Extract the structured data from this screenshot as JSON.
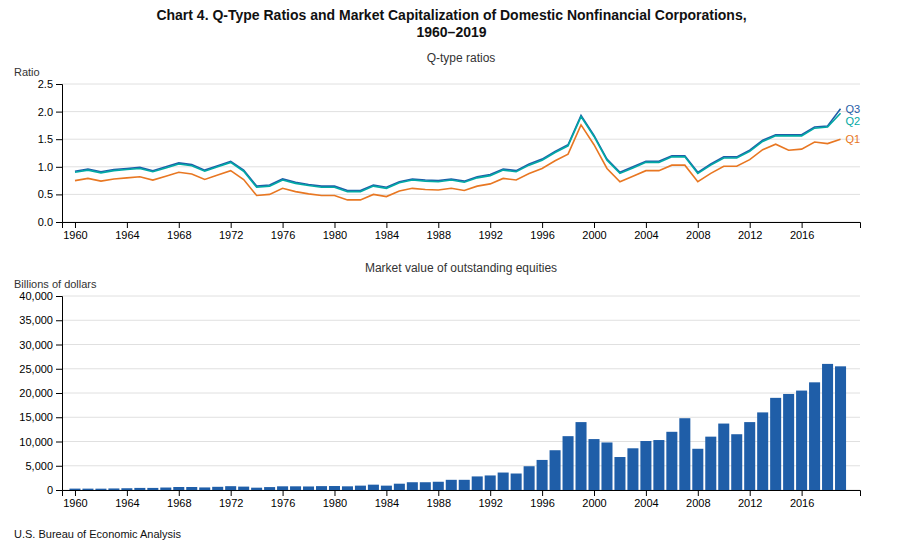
{
  "chart_data": [
    {
      "type": "line",
      "title": "Chart 4. Q-Type Ratios and Market Capitalization of Domestic Nonfinancial Corporations,\n1960–2019",
      "subtitle": "Q-type ratios",
      "y_label": "Ratio",
      "x": [
        1960,
        1961,
        1962,
        1963,
        1964,
        1965,
        1966,
        1967,
        1968,
        1969,
        1970,
        1971,
        1972,
        1973,
        1974,
        1975,
        1976,
        1977,
        1978,
        1979,
        1980,
        1981,
        1982,
        1983,
        1984,
        1985,
        1986,
        1987,
        1988,
        1989,
        1990,
        1991,
        1992,
        1993,
        1994,
        1995,
        1996,
        1997,
        1998,
        1999,
        2000,
        2001,
        2002,
        2003,
        2004,
        2005,
        2006,
        2007,
        2008,
        2009,
        2010,
        2011,
        2012,
        2013,
        2014,
        2015,
        2016,
        2017,
        2018,
        2019
      ],
      "series": [
        {
          "name": "Q3",
          "color": "#1F5EA8",
          "values": [
            0.92,
            0.96,
            0.91,
            0.95,
            0.97,
            0.99,
            0.93,
            1.0,
            1.07,
            1.04,
            0.94,
            1.02,
            1.1,
            0.94,
            0.65,
            0.67,
            0.78,
            0.72,
            0.68,
            0.65,
            0.65,
            0.57,
            0.57,
            0.67,
            0.63,
            0.73,
            0.78,
            0.76,
            0.75,
            0.78,
            0.74,
            0.82,
            0.86,
            0.96,
            0.93,
            1.05,
            1.14,
            1.28,
            1.4,
            1.93,
            1.57,
            1.14,
            0.9,
            1.0,
            1.1,
            1.1,
            1.2,
            1.2,
            0.9,
            1.05,
            1.18,
            1.18,
            1.3,
            1.48,
            1.58,
            1.58,
            1.58,
            1.72,
            1.74,
            2.05
          ]
        },
        {
          "name": "Q2",
          "color": "#00A9A5",
          "values": [
            0.9,
            0.94,
            0.89,
            0.93,
            0.95,
            0.97,
            0.91,
            0.98,
            1.05,
            1.02,
            0.92,
            1.0,
            1.08,
            0.92,
            0.63,
            0.65,
            0.76,
            0.7,
            0.66,
            0.63,
            0.63,
            0.55,
            0.55,
            0.65,
            0.61,
            0.71,
            0.76,
            0.74,
            0.73,
            0.76,
            0.72,
            0.8,
            0.84,
            0.94,
            0.91,
            1.03,
            1.12,
            1.26,
            1.38,
            1.91,
            1.55,
            1.12,
            0.88,
            0.98,
            1.08,
            1.08,
            1.18,
            1.18,
            0.88,
            1.03,
            1.16,
            1.16,
            1.28,
            1.46,
            1.56,
            1.56,
            1.56,
            1.7,
            1.72,
            1.97
          ]
        },
        {
          "name": "Q1",
          "color": "#E87722",
          "values": [
            0.75,
            0.79,
            0.74,
            0.78,
            0.8,
            0.82,
            0.76,
            0.83,
            0.9,
            0.87,
            0.77,
            0.85,
            0.93,
            0.77,
            0.48,
            0.5,
            0.61,
            0.55,
            0.51,
            0.48,
            0.48,
            0.4,
            0.4,
            0.5,
            0.46,
            0.56,
            0.61,
            0.59,
            0.58,
            0.61,
            0.57,
            0.65,
            0.69,
            0.79,
            0.76,
            0.88,
            0.97,
            1.11,
            1.23,
            1.76,
            1.4,
            0.97,
            0.73,
            0.83,
            0.93,
            0.93,
            1.03,
            1.03,
            0.73,
            0.88,
            1.01,
            1.01,
            1.13,
            1.31,
            1.41,
            1.3,
            1.32,
            1.45,
            1.42,
            1.5
          ]
        }
      ],
      "xlim": [
        1959,
        2020.5
      ],
      "xticks": [
        1960,
        1964,
        1968,
        1972,
        1976,
        1980,
        1984,
        1988,
        1992,
        1996,
        2000,
        2004,
        2008,
        2012,
        2016
      ],
      "ylim": [
        0.0,
        2.5
      ],
      "yticks": [
        {
          "value": 0,
          "label": "0.0"
        },
        0.5,
        {
          "value": 1,
          "label": "1.0"
        },
        1.5,
        {
          "value": 2,
          "label": "2.0"
        },
        2.5
      ],
      "grid": true
    },
    {
      "type": "bar",
      "subtitle": "Market value of outstanding equities",
      "y_label": "Billions of dollars",
      "x": [
        1960,
        1961,
        1962,
        1963,
        1964,
        1965,
        1966,
        1967,
        1968,
        1969,
        1970,
        1971,
        1972,
        1973,
        1974,
        1975,
        1976,
        1977,
        1978,
        1979,
        1980,
        1981,
        1982,
        1983,
        1984,
        1985,
        1986,
        1987,
        1988,
        1989,
        1990,
        1991,
        1992,
        1993,
        1994,
        1995,
        1996,
        1997,
        1998,
        1999,
        2000,
        2001,
        2002,
        2003,
        2004,
        2005,
        2006,
        2007,
        2008,
        2009,
        2010,
        2011,
        2012,
        2013,
        2014,
        2015,
        2016,
        2017,
        2018,
        2019
      ],
      "values": [
        286,
        281,
        275,
        320,
        363,
        430,
        430,
        510,
        618,
        618,
        530,
        658,
        788,
        700,
        480,
        600,
        760,
        760,
        730,
        800,
        820,
        760,
        900,
        1100,
        900,
        1300,
        1600,
        1600,
        1700,
        2100,
        2100,
        2800,
        3000,
        3600,
        3400,
        4900,
        6200,
        8200,
        11100,
        14000,
        10500,
        9800,
        6800,
        8600,
        10100,
        10300,
        12000,
        14800,
        8500,
        11000,
        13700,
        11500,
        14000,
        16000,
        19000,
        19800,
        20500,
        22200,
        26000,
        25500
      ],
      "color": "#1F5EA8",
      "xlim": [
        1959,
        2020.5
      ],
      "xticks": [
        1960,
        1964,
        1968,
        1972,
        1976,
        1980,
        1984,
        1988,
        1992,
        1996,
        2000,
        2004,
        2008,
        2012,
        2016
      ],
      "ylim": [
        0,
        40000
      ],
      "yticks": [
        0,
        {
          "value": 5000,
          "label": "5,000"
        },
        {
          "value": 10000,
          "label": "10,000"
        },
        {
          "value": 15000,
          "label": "15,000"
        },
        {
          "value": 20000,
          "label": "20,000"
        },
        {
          "value": 25000,
          "label": "25,000"
        },
        {
          "value": 30000,
          "label": "30,000"
        },
        {
          "value": 35000,
          "label": "35,000"
        },
        {
          "value": 40000,
          "label": "40,000"
        }
      ],
      "grid": true,
      "annotations": [
        "U.S. Bureau of Economic Analysis"
      ]
    }
  ]
}
